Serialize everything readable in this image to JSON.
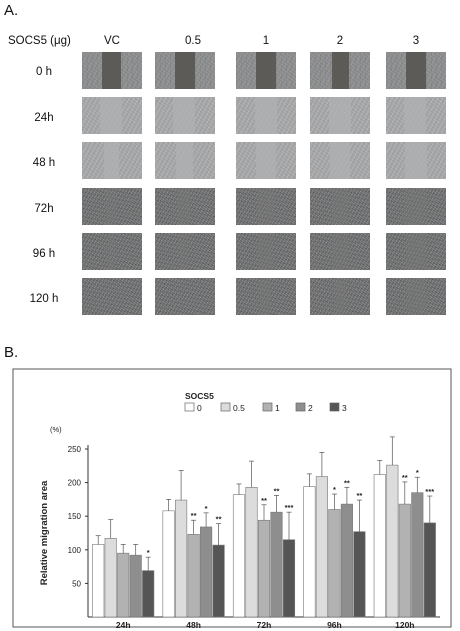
{
  "panel_a": {
    "label": "A.",
    "row_header": "SOCS5 (μg)",
    "columns": [
      "VC",
      "0.5",
      "1",
      "2",
      "3"
    ],
    "rows": [
      "0 h",
      "24h",
      "48 h",
      "72h",
      "96 h",
      "120 h"
    ]
  },
  "panel_b": {
    "label": "B."
  },
  "chart_data": {
    "type": "bar",
    "title": "",
    "xlabel": "",
    "ylabel": "Relative migration area",
    "yunit": "(%)",
    "ylim": [
      0,
      250
    ],
    "yticks": [
      50,
      100,
      150,
      200,
      250
    ],
    "legend_title": "SOCS5",
    "legend_position": "top",
    "categories": [
      "24h",
      "48h",
      "72h",
      "96h",
      "120h"
    ],
    "series": [
      {
        "name": "0",
        "color": "#ffffff",
        "values": [
          108,
          158,
          182,
          194,
          212
        ],
        "errors": [
          13,
          17,
          16,
          19,
          21
        ],
        "sig": [
          "",
          "",
          "",
          "",
          ""
        ]
      },
      {
        "name": "0.5",
        "color": "#dcdcdc",
        "values": [
          117,
          174,
          193,
          209,
          226
        ],
        "errors": [
          28,
          44,
          39,
          36,
          42
        ],
        "sig": [
          "",
          "",
          "",
          "",
          ""
        ]
      },
      {
        "name": "1",
        "color": "#b2b2b2",
        "values": [
          95,
          123,
          144,
          160,
          168
        ],
        "errors": [
          13,
          21,
          23,
          23,
          33
        ],
        "sig": [
          "",
          "**",
          "**",
          "*",
          "**"
        ]
      },
      {
        "name": "2",
        "color": "#8e8e8e",
        "values": [
          92,
          134,
          156,
          168,
          185
        ],
        "errors": [
          16,
          21,
          25,
          25,
          23
        ],
        "sig": [
          "",
          "*",
          "**",
          "**",
          "*"
        ]
      },
      {
        "name": "3",
        "color": "#555555",
        "values": [
          69,
          107,
          115,
          127,
          140
        ],
        "errors": [
          20,
          32,
          41,
          47,
          40
        ],
        "sig": [
          "*",
          "**",
          "***",
          "**",
          "***"
        ]
      }
    ]
  }
}
